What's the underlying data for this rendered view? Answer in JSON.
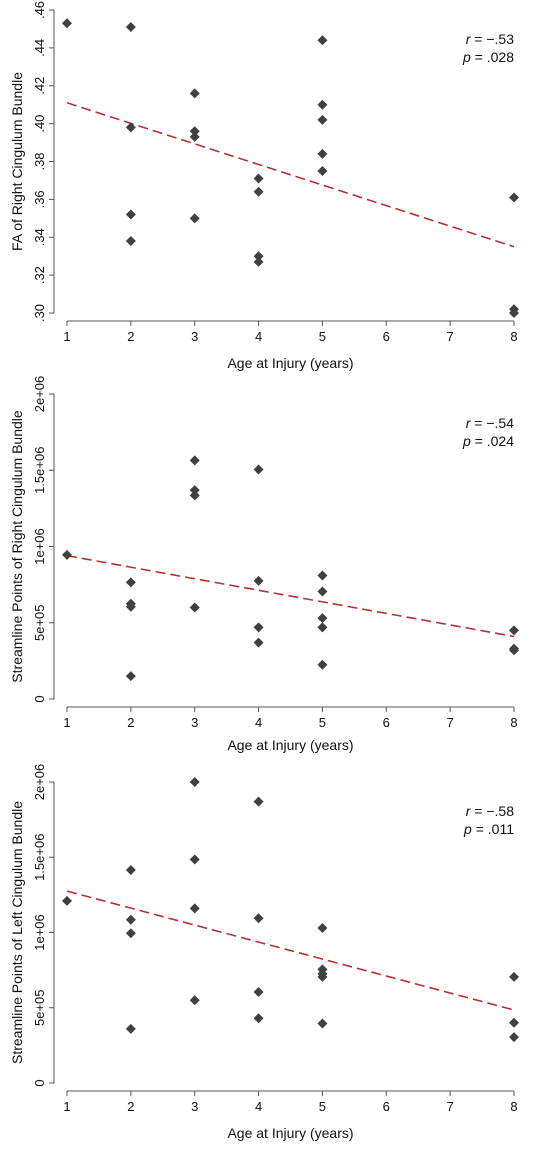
{
  "chart_data": [
    {
      "type": "scatter",
      "xlabel": "Age at Injury (years)",
      "ylabel": "FA of Right Cingulum Bundle",
      "xlim": [
        1,
        8
      ],
      "ylim": [
        0.3,
        0.46
      ],
      "x_ticks": [
        1,
        2,
        3,
        4,
        5,
        6,
        7,
        8
      ],
      "x_tick_labels": [
        "1",
        "2",
        "3",
        "4",
        "5",
        "6",
        "7",
        "8"
      ],
      "y_ticks": [
        0.3,
        0.32,
        0.34,
        0.36,
        0.38,
        0.4,
        0.42,
        0.44,
        0.46
      ],
      "y_tick_labels": [
        ".30",
        ".32",
        ".34",
        ".36",
        ".38",
        ".40",
        ".42",
        ".44",
        ".46"
      ],
      "grid": false,
      "r_label": "r = −.53",
      "p_label": "p = .028",
      "r_text": "r",
      "r_value": " = −.53",
      "p_text": "p",
      "p_value": " = .028",
      "points": {
        "x": [
          1,
          2,
          2,
          2,
          2,
          3,
          3,
          3,
          3,
          4,
          4,
          4,
          4,
          5,
          5,
          5,
          5,
          5,
          8,
          8,
          8
        ],
        "y": [
          0.453,
          0.451,
          0.398,
          0.352,
          0.338,
          0.416,
          0.396,
          0.393,
          0.35,
          0.371,
          0.364,
          0.33,
          0.327,
          0.444,
          0.41,
          0.402,
          0.384,
          0.375,
          0.361,
          0.302,
          0.3
        ]
      },
      "fit_line": {
        "x": [
          1,
          8
        ],
        "y": [
          0.411,
          0.335
        ]
      },
      "colors": {
        "marker": "#404040",
        "fit": "#b8312f",
        "axis": "#555555"
      }
    },
    {
      "type": "scatter",
      "xlabel": "Age at Injury (years)",
      "ylabel": "Streamline Points of Right Cingulum Bundle",
      "xlim": [
        1,
        8
      ],
      "ylim": [
        0,
        2000000
      ],
      "x_ticks": [
        1,
        2,
        3,
        4,
        5,
        6,
        7,
        8
      ],
      "x_tick_labels": [
        "1",
        "2",
        "3",
        "4",
        "5",
        "6",
        "7",
        "8"
      ],
      "y_ticks": [
        0,
        500000,
        1000000,
        1500000,
        2000000
      ],
      "y_tick_labels": [
        "0",
        "5e+05",
        "1e+06",
        "1.5e+06",
        "2e+06"
      ],
      "grid": false,
      "r_label": "r = −.54",
      "p_label": "p = .024",
      "r_text": "r",
      "r_value": " = −.54",
      "p_text": "p",
      "p_value": " = .024",
      "points": {
        "x": [
          1,
          2,
          2,
          2,
          2,
          3,
          3,
          3,
          3,
          4,
          4,
          4,
          4,
          5,
          5,
          5,
          5,
          5,
          8,
          8,
          8
        ],
        "y": [
          945000,
          765000,
          625000,
          605000,
          150000,
          1565000,
          1370000,
          1335000,
          600000,
          1505000,
          775000,
          470000,
          370000,
          810000,
          705000,
          530000,
          470000,
          225000,
          450000,
          330000,
          320000
        ]
      },
      "fit_line": {
        "x": [
          1,
          8
        ],
        "y": [
          940000,
          410000
        ]
      },
      "colors": {
        "marker": "#404040",
        "fit": "#b8312f",
        "axis": "#555555"
      }
    },
    {
      "type": "scatter",
      "xlabel": "Age at Injury (years)",
      "ylabel": "Streamline Points of Left Cingulum Bundle",
      "xlim": [
        1,
        8
      ],
      "ylim": [
        0,
        2000000
      ],
      "x_ticks": [
        1,
        2,
        3,
        4,
        5,
        6,
        7,
        8
      ],
      "x_tick_labels": [
        "1",
        "2",
        "3",
        "4",
        "5",
        "6",
        "7",
        "8"
      ],
      "y_ticks": [
        0,
        500000,
        1000000,
        1500000,
        2000000
      ],
      "y_tick_labels": [
        "0",
        "5e+05",
        "1e+06",
        "1.5e+06",
        "2e+06"
      ],
      "grid": false,
      "r_label": "r = −.58",
      "p_label": "p = .011",
      "r_text": "r",
      "r_value": " = −.58",
      "p_text": "p",
      "p_value": " = .011",
      "points": {
        "x": [
          1,
          2,
          2,
          2,
          2,
          3,
          3,
          3,
          3,
          4,
          4,
          4,
          4,
          5,
          5,
          5,
          5,
          5,
          8,
          8,
          8
        ],
        "y": [
          1210000,
          1415000,
          1085000,
          995000,
          360000,
          2000000,
          1485000,
          1160000,
          550000,
          1870000,
          1095000,
          605000,
          430000,
          1030000,
          755000,
          725000,
          705000,
          395000,
          705000,
          400000,
          305000
        ]
      },
      "fit_line": {
        "x": [
          1,
          8
        ],
        "y": [
          1275000,
          485000
        ]
      },
      "colors": {
        "marker": "#404040",
        "fit": "#b8312f",
        "axis": "#555555"
      }
    }
  ]
}
